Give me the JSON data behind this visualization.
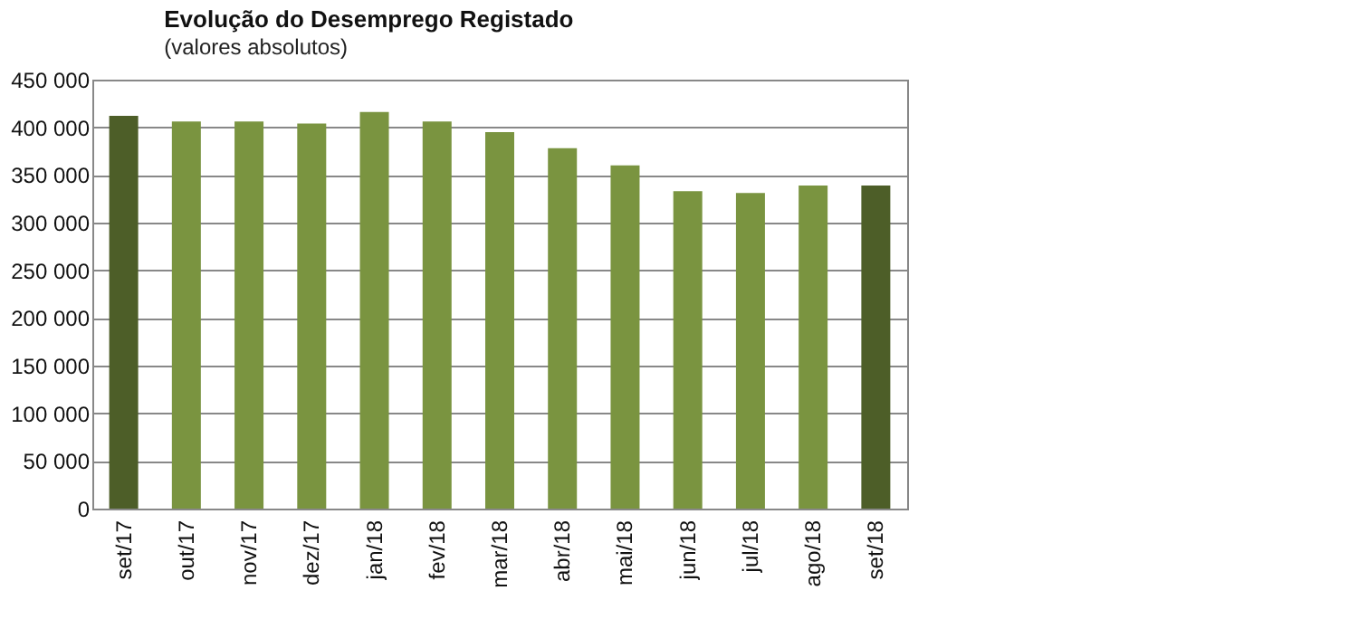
{
  "chart_data": {
    "type": "bar",
    "title": "Evolução do Desemprego Registado",
    "subtitle": "(valores absolutos)",
    "categories": [
      "set/17",
      "out/17",
      "nov/17",
      "dez/17",
      "jan/18",
      "fev/18",
      "mar/18",
      "abr/18",
      "mai/18",
      "jun/18",
      "jul/18",
      "ago/18",
      "set/18"
    ],
    "values": [
      412000,
      406000,
      406000,
      404000,
      416000,
      406000,
      395000,
      378000,
      360000,
      333000,
      331000,
      339000,
      339000
    ],
    "colors": [
      "#4d5e28",
      "#7a9440",
      "#7a9440",
      "#7a9440",
      "#7a9440",
      "#7a9440",
      "#7a9440",
      "#7a9440",
      "#7a9440",
      "#7a9440",
      "#7a9440",
      "#7a9440",
      "#4d5e28"
    ],
    "ylim": [
      0,
      450000
    ],
    "yticks": [
      0,
      50000,
      100000,
      150000,
      200000,
      250000,
      300000,
      350000,
      400000,
      450000
    ],
    "grid": "y"
  }
}
